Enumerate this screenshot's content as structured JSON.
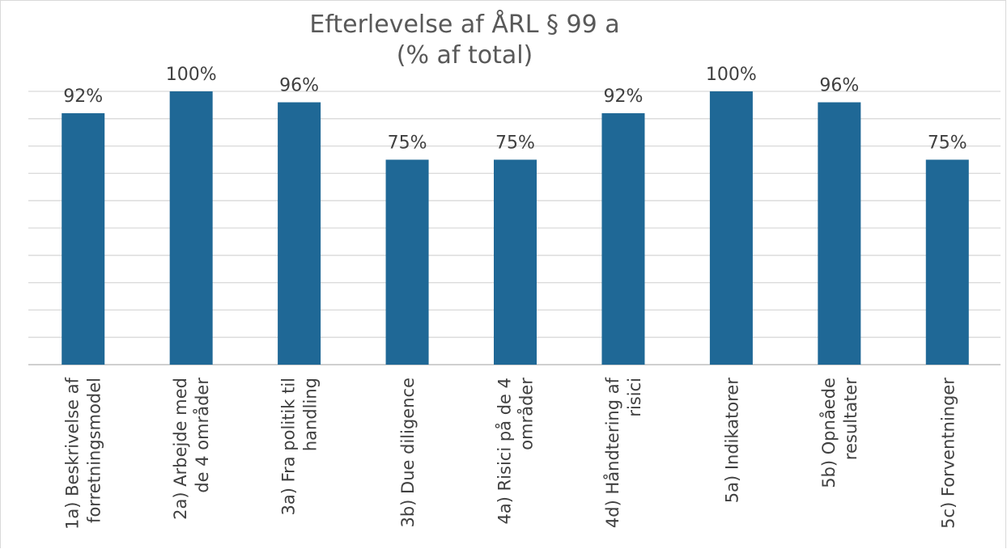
{
  "chart_data": {
    "type": "bar",
    "title_lines": [
      "Efterlevelse af ÅRL § 99 a",
      "(% af total)"
    ],
    "categories": [
      [
        "1a) Beskrivelse af",
        "forretningsmodel"
      ],
      [
        "2a) Arbejde med",
        "de 4 områder"
      ],
      [
        "3a) Fra politik til",
        "handling"
      ],
      [
        "3b) Due diligence"
      ],
      [
        "4a) Risici på de 4",
        "områder"
      ],
      [
        "4d) Håndtering af",
        "risici"
      ],
      [
        "5a) Indikatorer"
      ],
      [
        "5b) Opnåede",
        "resultater"
      ],
      [
        "5c) Forventninger"
      ]
    ],
    "values": [
      92,
      100,
      96,
      75,
      75,
      92,
      100,
      96,
      75
    ],
    "data_labels": [
      "92%",
      "100%",
      "96%",
      "75%",
      "75%",
      "92%",
      "100%",
      "96%",
      "75%"
    ],
    "ylim": [
      0,
      100
    ],
    "grid": true,
    "bar_color": "#1f6896",
    "grid_color": "#d9d9d9"
  }
}
